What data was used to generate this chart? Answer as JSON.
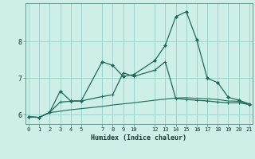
{
  "xlabel": "Humidex (Indice chaleur)",
  "background_color": "#ceeee8",
  "grid_color": "#9dd4cc",
  "line_color": "#1e6b5a",
  "x_ticks": [
    0,
    1,
    2,
    3,
    4,
    5,
    7,
    8,
    9,
    10,
    12,
    13,
    14,
    15,
    16,
    17,
    18,
    19,
    20,
    21
  ],
  "x_range": [
    -0.3,
    21.3
  ],
  "y_range": [
    5.75,
    9.05
  ],
  "y_ticks": [
    6,
    7,
    8
  ],
  "series1_x": [
    0,
    1,
    2,
    3,
    4,
    5,
    7,
    8,
    9,
    10,
    12,
    13,
    14,
    15,
    16,
    17,
    18,
    19,
    20,
    21
  ],
  "series1_y": [
    5.95,
    5.93,
    6.07,
    6.65,
    6.38,
    6.38,
    7.45,
    7.35,
    7.05,
    7.1,
    7.48,
    7.9,
    8.68,
    8.82,
    8.05,
    7.0,
    6.88,
    6.48,
    6.4,
    6.3
  ],
  "series2_x": [
    0,
    1,
    2,
    3,
    4,
    5,
    7,
    8,
    9,
    10,
    12,
    13,
    14,
    15,
    16,
    17,
    18,
    19,
    20,
    21
  ],
  "series2_y": [
    5.95,
    5.93,
    6.07,
    6.35,
    6.37,
    6.38,
    6.5,
    6.55,
    7.15,
    7.05,
    7.22,
    7.45,
    6.45,
    6.42,
    6.4,
    6.38,
    6.35,
    6.33,
    6.33,
    6.28
  ],
  "series3_x": [
    0,
    1,
    2,
    3,
    4,
    5,
    7,
    8,
    9,
    10,
    12,
    13,
    14,
    15,
    16,
    17,
    18,
    19,
    20,
    21
  ],
  "series3_y": [
    5.95,
    5.93,
    6.06,
    6.1,
    6.14,
    6.17,
    6.23,
    6.27,
    6.3,
    6.33,
    6.4,
    6.43,
    6.46,
    6.47,
    6.45,
    6.44,
    6.42,
    6.38,
    6.37,
    6.28
  ]
}
